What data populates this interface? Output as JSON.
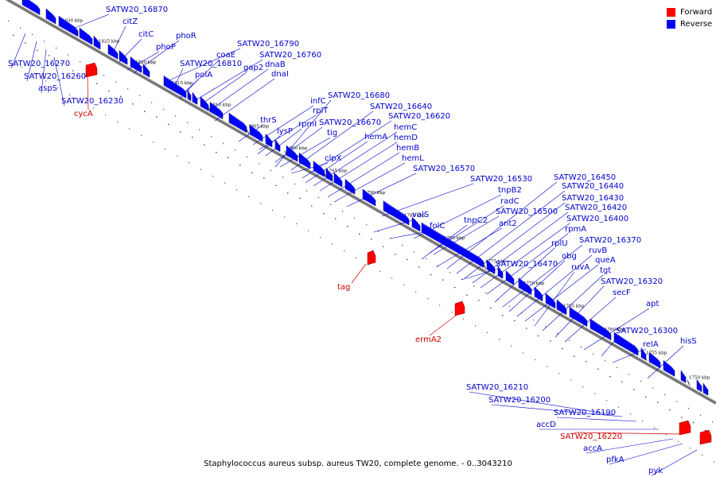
{
  "legend": {
    "forward_label": "Forward",
    "reverse_label": "Reverse",
    "forward_color": "#ff0000",
    "reverse_color": "#0000ff"
  },
  "caption": "Staphylococcus aureus subsp. aureus TW20, complete genome. - 0..3043210",
  "ticks": [
    "1830 kbp",
    "1825 kbp",
    "1820 kbp",
    "1815 kbp",
    "1810 kbp",
    "1805 kbp",
    "1800 kbp",
    "1795 kbp",
    "1790 kbp",
    "1785 kbp",
    "1780 kbp",
    "1775 kbp",
    "1770 kbp",
    "1765 kbp",
    "1760 kbp",
    "1755 kbp",
    "1750 kbp"
  ],
  "reverse_labels": [
    "SATW20_16870",
    "citZ",
    "citC",
    "phoR",
    "phoP",
    "SATW20_16790",
    "coaE",
    "SATW20_16760",
    "SATW20_16810",
    "gap2",
    "dnaB",
    "polA",
    "dnaI",
    "infC",
    "rplT",
    "rpmI",
    "SATW20_16680",
    "thrS",
    "lysP",
    "SATW20_16640",
    "SATW20_16620",
    "SATW20_16670",
    "tig",
    "hemC",
    "hemA",
    "hemD",
    "clpX",
    "hemB",
    "hemL",
    "SATW20_16570",
    "SATW20_16530",
    "tnpB2",
    "radC",
    "valS",
    "folC",
    "tnpC2",
    "ant2",
    "SATW20_16500",
    "SATW20_16450",
    "SATW20_16440",
    "SATW20_16430",
    "SATW20_16420",
    "SATW20_16400",
    "rpmA",
    "rplU",
    "SATW20_16370",
    "obg",
    "ruvB",
    "queA",
    "ruvA",
    "tgt",
    "SATW20_16320",
    "secF",
    "apt",
    "SATW20_16300",
    "relA",
    "hisS",
    "SATW20_16470",
    "SATW20_16270",
    "SATW20_16260",
    "aspS",
    "SATW20_16230",
    "SATW20_16210",
    "SATW20_16200",
    "SATW20_16190",
    "accD",
    "accA",
    "pfkA",
    "pyk"
  ],
  "forward_labels": [
    "cycA",
    "tag",
    "ermA2",
    "SATW20_16220"
  ]
}
